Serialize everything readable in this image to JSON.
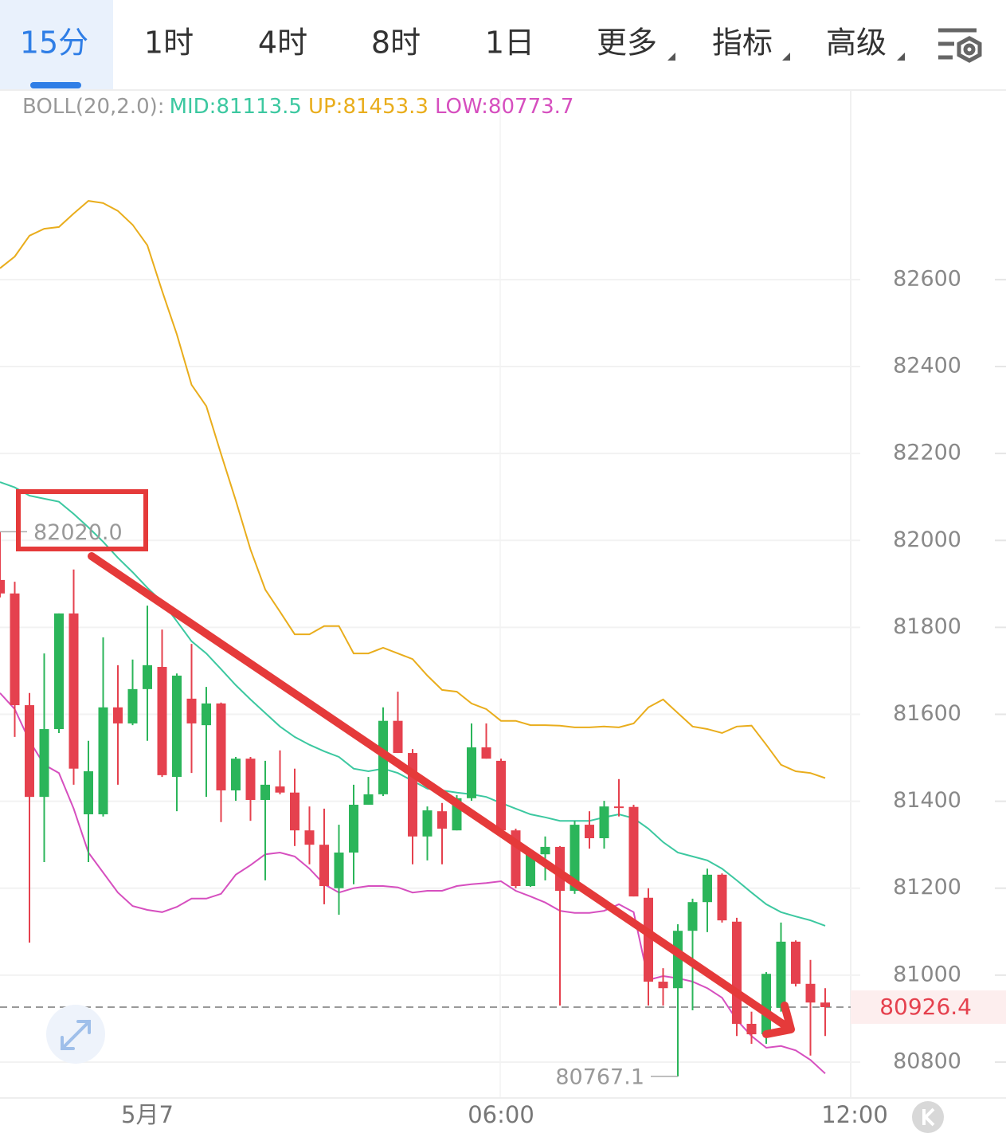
{
  "tabs": [
    "15分",
    "1时",
    "4时",
    "8时",
    "1日",
    "更多",
    "指标",
    "高级"
  ],
  "chart_data": {
    "type": "candlestick",
    "indicator": "BOLL(20,2.0):",
    "up_color": "#2bb55a",
    "down_color": "#e5414e",
    "xlim": [
      0,
      58
    ],
    "xticks": [
      {
        "value": 10,
        "label": "5月7"
      },
      {
        "value": 34,
        "label": "06:00"
      },
      {
        "value": 58,
        "label": "12:00"
      }
    ],
    "ylim": [
      80717.5,
      83036
    ],
    "yticks": [
      80800,
      81000,
      81200,
      81400,
      81600,
      81800,
      82000,
      82200,
      82400,
      82600
    ],
    "grid": true,
    "open": [
      81909,
      81878,
      81621,
      81410,
      81566,
      81832,
      81370,
      81370,
      81616,
      81579,
      81658,
      81709,
      81456,
      81636,
      81575,
      81625,
      81425,
      81498,
      81403,
      81434,
      81420,
      81333,
      81300,
      81200,
      81282,
      81392,
      81416,
      81585,
      81511,
      81319,
      81377,
      81333,
      81407,
      81524,
      81493,
      81333,
      81205,
      81278,
      81295,
      81194,
      81346,
      81315,
      81388,
      81387,
      81178,
      80985,
      80970,
      81102,
      81168,
      81231,
      81123,
      80888,
      80864,
      80925,
      81077,
      80980,
      80937
    ],
    "high": [
      82020,
      81905,
      81649,
      81740,
      81832,
      81933,
      81539,
      81777,
      81713,
      81726,
      81850,
      81795,
      81694,
      81762,
      81663,
      81627,
      81502,
      81502,
      81493,
      81517,
      81475,
      81388,
      81383,
      81346,
      81438,
      81456,
      81616,
      81652,
      81520,
      81388,
      81396,
      81414,
      81579,
      81579,
      81498,
      81337,
      81282,
      81319,
      81297,
      81355,
      81377,
      81401,
      81451,
      81392,
      81200,
      81016,
      81117,
      81176,
      81245,
      81234,
      81132,
      80916,
      81007,
      81121,
      81080,
      81035,
      80970
    ],
    "low": [
      81869,
      81548,
      81075,
      81260,
      81557,
      81438,
      81260,
      81365,
      81438,
      81575,
      81539,
      81456,
      81377,
      81465,
      81410,
      81352,
      81401,
      81355,
      81218,
      81416,
      81297,
      81255,
      81163,
      81139,
      81209,
      81392,
      81412,
      81511,
      81255,
      81264,
      81255,
      81333,
      81401,
      81498,
      81328,
      81200,
      81203,
      81218,
      80930,
      81187,
      81291,
      81291,
      81365,
      81181,
      80930,
      80930,
      80767.1,
      80919,
      81099,
      81121,
      80860,
      80842,
      80842,
      80916,
      80974,
      80815,
      80860
    ],
    "close": [
      81878,
      81621,
      81410,
      81566,
      81832,
      81475,
      81469,
      81616,
      81579,
      81658,
      81713,
      81460,
      81689,
      81579,
      81625,
      81425,
      81498,
      81403,
      81438,
      81420,
      81333,
      81300,
      81205,
      81282,
      81392,
      81416,
      81585,
      81511,
      81319,
      81379,
      81337,
      81407,
      81524,
      81498,
      81333,
      81205,
      81278,
      81295,
      81194,
      81346,
      81315,
      81388,
      81385,
      81181,
      80985,
      80970,
      81102,
      81168,
      81231,
      81126,
      80888,
      80864,
      81003,
      81077,
      80980,
      80937,
      80926.4
    ],
    "series": [
      {
        "name": "MID:81113.5",
        "color": "#3cc8a0",
        "values": [
          82134,
          82122,
          82103,
          82096,
          82089,
          82061,
          82030,
          81997,
          81960,
          81927,
          81891,
          81859,
          81814,
          81768,
          81740,
          81704,
          81667,
          81634,
          81603,
          81572,
          81548,
          81530,
          81515,
          81502,
          81475,
          81469,
          81475,
          81465,
          81447,
          81429,
          81425,
          81420,
          81416,
          81410,
          81396,
          81383,
          81370,
          81363,
          81355,
          81355,
          81355,
          81363,
          81370,
          81361,
          81337,
          81306,
          81282,
          81273,
          81264,
          81245,
          81218,
          81190,
          81163,
          81145,
          81135,
          81126,
          81113.5
        ]
      },
      {
        "name": "UP:81453.3",
        "color": "#e9ad1c",
        "values": [
          82626,
          82653,
          82701,
          82717,
          82721,
          82752,
          82781,
          82776,
          82758,
          82726,
          82679,
          82574,
          82474,
          82358,
          82309,
          82199,
          82092,
          81979,
          81887,
          81836,
          81784,
          81784,
          81803,
          81803,
          81740,
          81740,
          81753,
          81740,
          81727,
          81689,
          81656,
          81652,
          81625,
          81612,
          81585,
          81585,
          81575,
          81575,
          81574,
          81570,
          81570,
          81572,
          81570,
          81579,
          81616,
          81634,
          81603,
          81572,
          81566,
          81557,
          81572,
          81574,
          81530,
          81484,
          81469,
          81465,
          81453.3
        ]
      },
      {
        "name": "LOW:80773.7",
        "color": "#d64fbf",
        "values": [
          81649,
          81612,
          81539,
          81484,
          81465,
          81383,
          81282,
          81236,
          81190,
          81159,
          81150,
          81145,
          81157,
          81176,
          81176,
          81187,
          81231,
          81253,
          81278,
          81282,
          81273,
          81245,
          81209,
          81190,
          81200,
          81205,
          81205,
          81202,
          81190,
          81194,
          81194,
          81205,
          81209,
          81212,
          81216,
          81194,
          81181,
          81167,
          81148,
          81143,
          81143,
          81148,
          81163,
          81145,
          80989,
          80998,
          80993,
          80985,
          80970,
          80948,
          80897,
          80860,
          80833,
          80837,
          80827,
          80805,
          80773.7
        ]
      }
    ],
    "max_label": {
      "value": 82020,
      "label": "82020.0"
    },
    "min_label": {
      "value": 80767.1,
      "label": "80767.1"
    },
    "last_price": {
      "value": 80926.4,
      "label": "80926.4"
    }
  }
}
